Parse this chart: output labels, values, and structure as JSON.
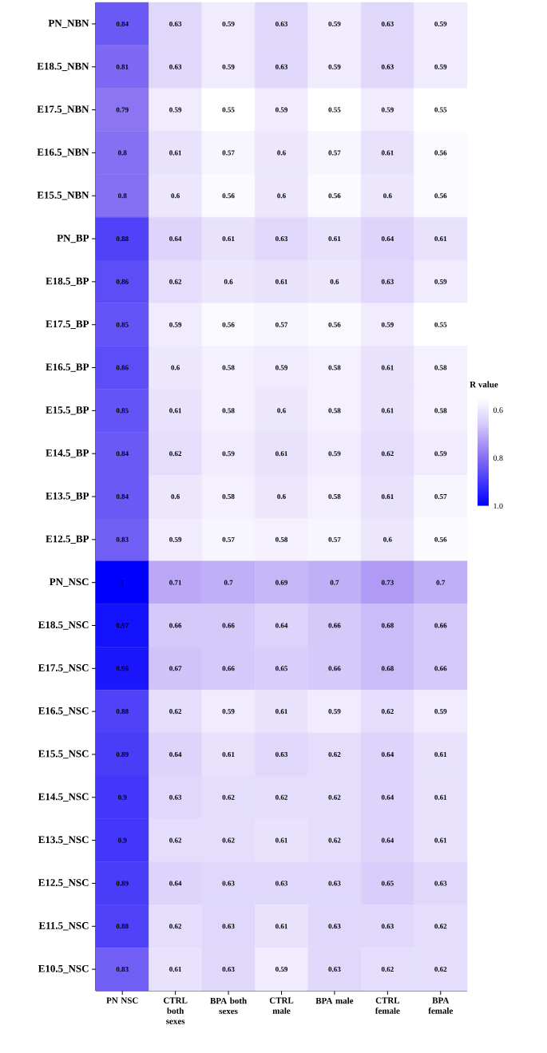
{
  "chart_data": {
    "type": "heatmap",
    "clabel": "R value",
    "data_labels": true,
    "categories": [
      "PN NSC",
      "CTRL both sexes",
      "BPA both sexes",
      "CTRL male",
      "BPA male",
      "CTRL female",
      "BPA female"
    ],
    "y_categories": [
      "PN_NBN",
      "E18.5_NBN",
      "E17.5_NBN",
      "E16.5_NBN",
      "E15.5_NBN",
      "PN_BP",
      "E18.5_BP",
      "E17.5_BP",
      "E16.5_BP",
      "E15.5_BP",
      "E14.5_BP",
      "E13.5_BP",
      "E12.5_BP",
      "PN_NSC",
      "E18.5_NSC",
      "E17.5_NSC",
      "E16.5_NSC",
      "E15.5_NSC",
      "E14.5_NSC",
      "E13.5_NSC",
      "E12.5_NSC",
      "E11.5_NSC",
      "E10.5_NSC"
    ],
    "cells": [
      [
        0.84,
        0.63,
        0.59,
        0.63,
        0.59,
        0.63,
        0.59
      ],
      [
        0.81,
        0.63,
        0.59,
        0.63,
        0.59,
        0.63,
        0.59
      ],
      [
        0.79,
        0.59,
        0.55,
        0.59,
        0.55,
        0.59,
        0.55
      ],
      [
        0.8,
        0.61,
        0.57,
        0.6,
        0.57,
        0.61,
        0.56
      ],
      [
        0.8,
        0.6,
        0.56,
        0.6,
        0.56,
        0.6,
        0.56
      ],
      [
        0.88,
        0.64,
        0.61,
        0.63,
        0.61,
        0.64,
        0.61
      ],
      [
        0.86,
        0.62,
        0.6,
        0.61,
        0.6,
        0.63,
        0.59
      ],
      [
        0.85,
        0.59,
        0.56,
        0.57,
        0.56,
        0.59,
        0.55
      ],
      [
        0.86,
        0.6,
        0.58,
        0.59,
        0.58,
        0.61,
        0.58
      ],
      [
        0.85,
        0.61,
        0.58,
        0.6,
        0.58,
        0.61,
        0.58
      ],
      [
        0.84,
        0.62,
        0.59,
        0.61,
        0.59,
        0.62,
        0.59
      ],
      [
        0.84,
        0.6,
        0.58,
        0.6,
        0.58,
        0.61,
        0.57
      ],
      [
        0.83,
        0.59,
        0.57,
        0.58,
        0.57,
        0.6,
        0.56
      ],
      [
        1,
        0.71,
        0.7,
        0.69,
        0.7,
        0.73,
        0.7
      ],
      [
        0.97,
        0.66,
        0.66,
        0.64,
        0.66,
        0.68,
        0.66
      ],
      [
        0.96,
        0.67,
        0.66,
        0.65,
        0.66,
        0.68,
        0.66
      ],
      [
        0.88,
        0.62,
        0.59,
        0.61,
        0.59,
        0.62,
        0.59
      ],
      [
        0.89,
        0.64,
        0.61,
        0.63,
        0.62,
        0.64,
        0.61
      ],
      [
        0.9,
        0.63,
        0.62,
        0.62,
        0.62,
        0.64,
        0.61
      ],
      [
        0.9,
        0.62,
        0.62,
        0.61,
        0.62,
        0.64,
        0.61
      ],
      [
        0.89,
        0.64,
        0.63,
        0.63,
        0.63,
        0.65,
        0.63
      ],
      [
        0.88,
        0.62,
        0.63,
        0.61,
        0.63,
        0.63,
        0.62
      ],
      [
        0.83,
        0.61,
        0.63,
        0.59,
        0.63,
        0.62,
        0.62
      ]
    ],
    "clim": [
      0.55,
      1.0
    ],
    "cticks": [
      0.6,
      0.8,
      {
        "value": 1,
        "label": "1.0"
      }
    ]
  }
}
